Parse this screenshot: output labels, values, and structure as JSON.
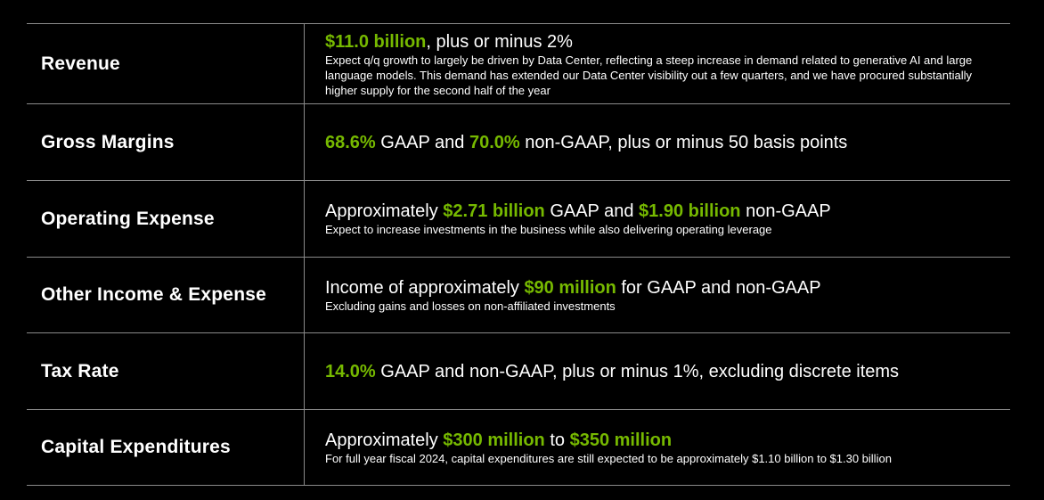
{
  "rows": [
    {
      "label": "Revenue",
      "parts": [
        {
          "text": "$11.0 billion",
          "highlight": true
        },
        {
          "text": ", plus or minus 2%",
          "highlight": false
        }
      ],
      "detail": "Expect q/q growth to largely be driven by Data Center, reflecting a steep increase in demand related to generative AI and large language models. This demand has extended our Data Center visibility out a few quarters, and we have procured substantially higher supply for the second half of the year"
    },
    {
      "label": "Gross Margins",
      "parts": [
        {
          "text": "68.6%",
          "highlight": true
        },
        {
          "text": " GAAP and ",
          "highlight": false
        },
        {
          "text": "70.0%",
          "highlight": true
        },
        {
          "text": " non-GAAP, plus or minus 50 basis points",
          "highlight": false
        }
      ],
      "detail": ""
    },
    {
      "label": "Operating Expense",
      "parts": [
        {
          "text": "Approximately ",
          "highlight": false
        },
        {
          "text": "$2.71 billion",
          "highlight": true
        },
        {
          "text": " GAAP and ",
          "highlight": false
        },
        {
          "text": "$1.90 billion",
          "highlight": true
        },
        {
          "text": " non-GAAP",
          "highlight": false
        }
      ],
      "detail": "Expect to increase investments in the business while also delivering operating leverage"
    },
    {
      "label": "Other Income & Expense",
      "parts": [
        {
          "text": "Income of approximately ",
          "highlight": false
        },
        {
          "text": "$90 million",
          "highlight": true
        },
        {
          "text": " for GAAP and non-GAAP",
          "highlight": false
        }
      ],
      "detail": "Excluding gains and losses on non-affiliated investments"
    },
    {
      "label": "Tax Rate",
      "parts": [
        {
          "text": "14.0%",
          "highlight": true
        },
        {
          "text": " GAAP and non-GAAP, plus or minus 1%, excluding discrete items",
          "highlight": false
        }
      ],
      "detail": ""
    },
    {
      "label": "Capital Expenditures",
      "parts": [
        {
          "text": "Approximately ",
          "highlight": false
        },
        {
          "text": "$300 million",
          "highlight": true
        },
        {
          "text": " to ",
          "highlight": false
        },
        {
          "text": "$350 million",
          "highlight": true
        }
      ],
      "detail": "For full year fiscal 2024, capital expenditures are still expected to be approximately $1.10 billion to $1.30 billion"
    }
  ],
  "colors": {
    "background": "#000000",
    "highlight": "#76b900",
    "text": "#ffffff",
    "rule": "#8a8a8a"
  }
}
